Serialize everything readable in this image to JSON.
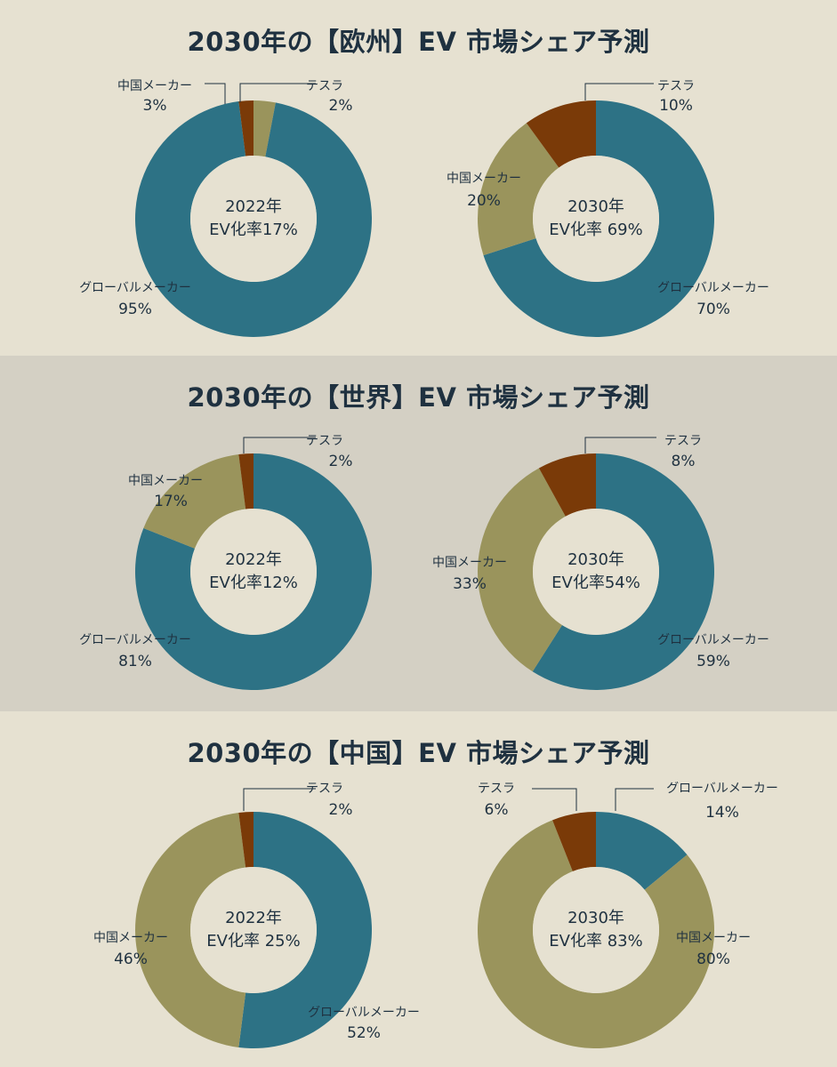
{
  "colors": {
    "global": "#2d7285",
    "china": "#9a945c",
    "tesla": "#7a3a08",
    "hole": "#e6e1d1",
    "leader": "#1f3140",
    "text": "#1f3140"
  },
  "chart_data": [
    {
      "type": "pie",
      "title": "2030年の【欧州】EV 市場シェア予測",
      "charts": [
        {
          "center_line1": "2022年",
          "center_line2": "EV化率17%",
          "slices": [
            {
              "label": "テスラ",
              "value": 2,
              "value_label": "2%",
              "color_key": "tesla"
            },
            {
              "label": "グローバルメーカー",
              "value": 95,
              "value_label": "95%",
              "color_key": "global"
            },
            {
              "label": "中国メーカー",
              "value": 3,
              "value_label": "3%",
              "color_key": "china"
            }
          ]
        },
        {
          "center_line1": "2030年",
          "center_line2": "EV化率 69%",
          "slices": [
            {
              "label": "グローバルメーカー",
              "value": 70,
              "value_label": "70%",
              "color_key": "global"
            },
            {
              "label": "中国メーカー",
              "value": 20,
              "value_label": "20%",
              "color_key": "china"
            },
            {
              "label": "テスラ",
              "value": 10,
              "value_label": "10%",
              "color_key": "tesla"
            }
          ]
        }
      ]
    },
    {
      "type": "pie",
      "title": "2030年の【世界】EV 市場シェア予測",
      "charts": [
        {
          "center_line1": "2022年",
          "center_line2": "EV化率12%",
          "slices": [
            {
              "label": "グローバルメーカー",
              "value": 81,
              "value_label": "81%",
              "color_key": "global"
            },
            {
              "label": "中国メーカー",
              "value": 17,
              "value_label": "17%",
              "color_key": "china"
            },
            {
              "label": "テスラ",
              "value": 2,
              "value_label": "2%",
              "color_key": "tesla"
            }
          ]
        },
        {
          "center_line1": "2030年",
          "center_line2": "EV化率54%",
          "slices": [
            {
              "label": "グローバルメーカー",
              "value": 59,
              "value_label": "59%",
              "color_key": "global"
            },
            {
              "label": "中国メーカー",
              "value": 33,
              "value_label": "33%",
              "color_key": "china"
            },
            {
              "label": "テスラ",
              "value": 8,
              "value_label": "8%",
              "color_key": "tesla"
            }
          ]
        }
      ]
    },
    {
      "type": "pie",
      "title": "2030年の【中国】EV 市場シェア予測",
      "charts": [
        {
          "center_line1": "2022年",
          "center_line2": "EV化率 25%",
          "slices": [
            {
              "label": "グローバルメーカー",
              "value": 52,
              "value_label": "52%",
              "color_key": "global"
            },
            {
              "label": "中国メーカー",
              "value": 46,
              "value_label": "46%",
              "color_key": "china"
            },
            {
              "label": "テスラ",
              "value": 2,
              "value_label": "2%",
              "color_key": "tesla"
            }
          ]
        },
        {
          "center_line1": "2030年",
          "center_line2": "EV化率 83%",
          "slices": [
            {
              "label": "グローバルメーカー",
              "value": 14,
              "value_label": "14%",
              "color_key": "global"
            },
            {
              "label": "中国メーカー",
              "value": 80,
              "value_label": "80%",
              "color_key": "china"
            },
            {
              "label": "テスラ",
              "value": 6,
              "value_label": "6%",
              "color_key": "tesla"
            }
          ]
        }
      ]
    }
  ]
}
